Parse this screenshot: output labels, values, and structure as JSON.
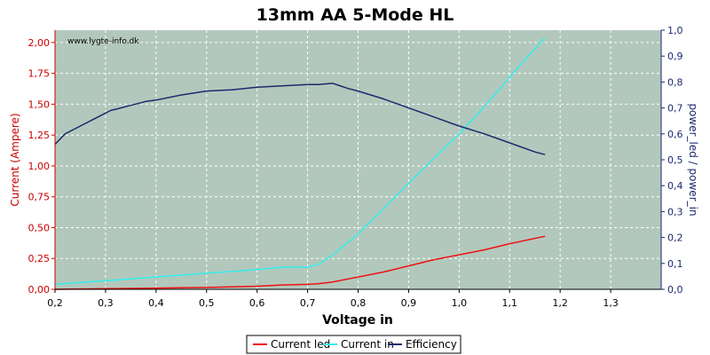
{
  "chart_data": {
    "type": "line",
    "title": "13mm AA 5-Mode HL",
    "xlabel": "Voltage in",
    "ylabel_left": "Current (Ampere)",
    "ylabel_right": "power_led / power_in",
    "watermark": "www.lygte-info.dk",
    "xlim": [
      0.2,
      1.4
    ],
    "ylim_left": [
      0,
      2.1
    ],
    "ylim_right": [
      0,
      1.0
    ],
    "x_ticks": [
      "0,2",
      "0,3",
      "0,4",
      "0,5",
      "0,6",
      "0,7",
      "0,8",
      "0,9",
      "1,0",
      "1,1",
      "1,2",
      "1,3"
    ],
    "y_left_ticks": [
      "0,00",
      "0,25",
      "0,50",
      "0,75",
      "1,00",
      "1,25",
      "1,50",
      "1,75",
      "2,00"
    ],
    "y_right_ticks": [
      "0,0",
      "0,1",
      "0,2",
      "0,3",
      "0,4",
      "0,5",
      "0,6",
      "0,7",
      "0,8",
      "0,9",
      "1,0"
    ],
    "grid": true,
    "legend_position": "bottom",
    "colors": {
      "plot_bg": "#b3c8bc",
      "current_led": "#ee1111",
      "current_in": "#33eeee",
      "efficiency": "#1a2a6e",
      "left_axis": "#cc0000",
      "right_axis": "#1a2a6e"
    },
    "series": [
      {
        "name": "Current led",
        "axis": "left",
        "x": [
          0.2,
          0.3,
          0.4,
          0.5,
          0.6,
          0.65,
          0.7,
          0.72,
          0.75,
          0.8,
          0.85,
          0.9,
          0.95,
          1.0,
          1.05,
          1.1,
          1.17
        ],
        "y": [
          0.0,
          0.005,
          0.01,
          0.015,
          0.025,
          0.035,
          0.04,
          0.045,
          0.06,
          0.1,
          0.14,
          0.19,
          0.24,
          0.28,
          0.32,
          0.37,
          0.43
        ]
      },
      {
        "name": "Current in",
        "axis": "left",
        "x": [
          0.2,
          0.3,
          0.4,
          0.5,
          0.6,
          0.65,
          0.7,
          0.72,
          0.75,
          0.8,
          0.85,
          0.9,
          0.95,
          1.0,
          1.05,
          1.1,
          1.17
        ],
        "y": [
          0.04,
          0.07,
          0.1,
          0.13,
          0.16,
          0.18,
          0.18,
          0.2,
          0.28,
          0.45,
          0.65,
          0.86,
          1.06,
          1.26,
          1.48,
          1.72,
          2.04
        ]
      },
      {
        "name": "Efficiency",
        "axis": "right",
        "x": [
          0.2,
          0.22,
          0.25,
          0.28,
          0.3,
          0.31,
          0.32,
          0.35,
          0.38,
          0.4,
          0.45,
          0.5,
          0.55,
          0.6,
          0.65,
          0.7,
          0.72,
          0.75,
          0.78,
          0.8,
          0.85,
          0.9,
          0.95,
          1.0,
          1.05,
          1.1,
          1.15,
          1.17
        ],
        "y": [
          0.56,
          0.6,
          0.63,
          0.66,
          0.68,
          0.69,
          0.695,
          0.71,
          0.725,
          0.73,
          0.75,
          0.765,
          0.77,
          0.78,
          0.785,
          0.79,
          0.79,
          0.795,
          0.775,
          0.765,
          0.735,
          0.7,
          0.665,
          0.63,
          0.6,
          0.565,
          0.53,
          0.52
        ]
      }
    ]
  }
}
